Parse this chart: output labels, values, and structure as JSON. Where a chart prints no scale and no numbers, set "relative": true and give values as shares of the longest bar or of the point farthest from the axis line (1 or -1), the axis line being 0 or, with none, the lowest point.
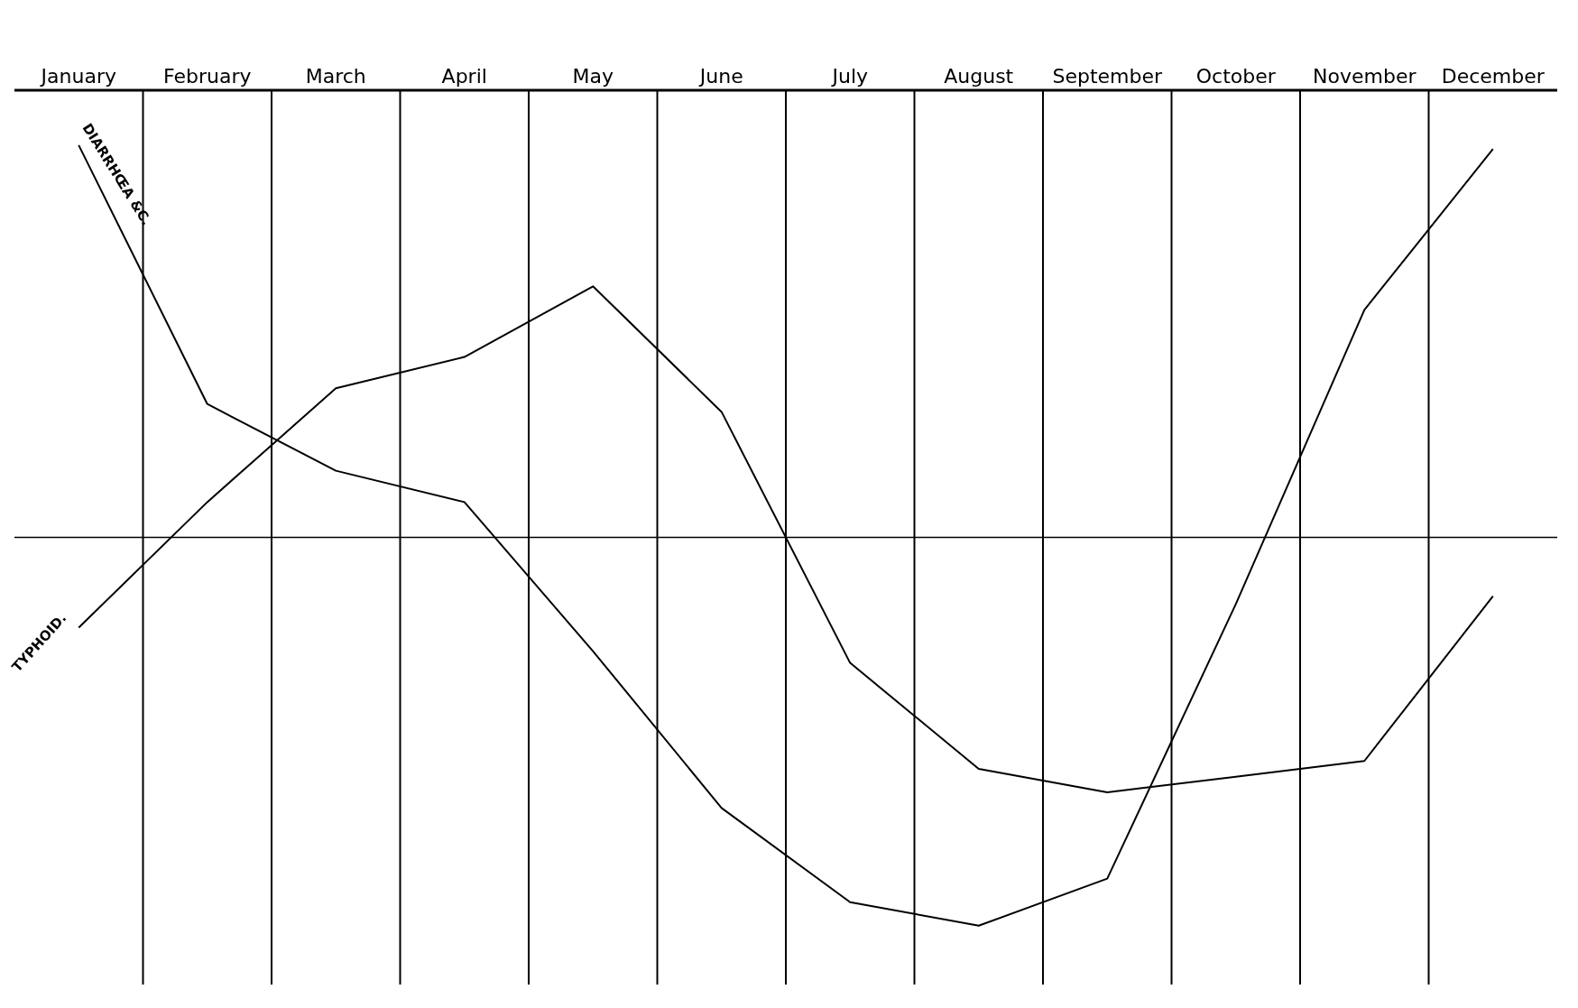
{
  "chart_data": {
    "type": "line",
    "relative": true,
    "categories": [
      "January",
      "February",
      "March",
      "April",
      "May",
      "June",
      "July",
      "August",
      "September",
      "October",
      "November",
      "December"
    ],
    "series": [
      {
        "name": "DIARRHŒA &C.",
        "color": "#000000",
        "values": [
          1.0,
          0.34,
          0.17,
          0.09,
          -0.29,
          -0.69,
          -0.93,
          -0.99,
          -0.87,
          -0.17,
          0.58,
          0.99
        ]
      },
      {
        "name": "TYPHOID.",
        "color": "#000000",
        "values": [
          -0.23,
          0.09,
          0.38,
          0.46,
          0.64,
          0.32,
          -0.32,
          -0.59,
          -0.65,
          -0.61,
          -0.57,
          -0.15
        ]
      }
    ],
    "grid": "x",
    "marker": "none",
    "line_style": "solid"
  }
}
